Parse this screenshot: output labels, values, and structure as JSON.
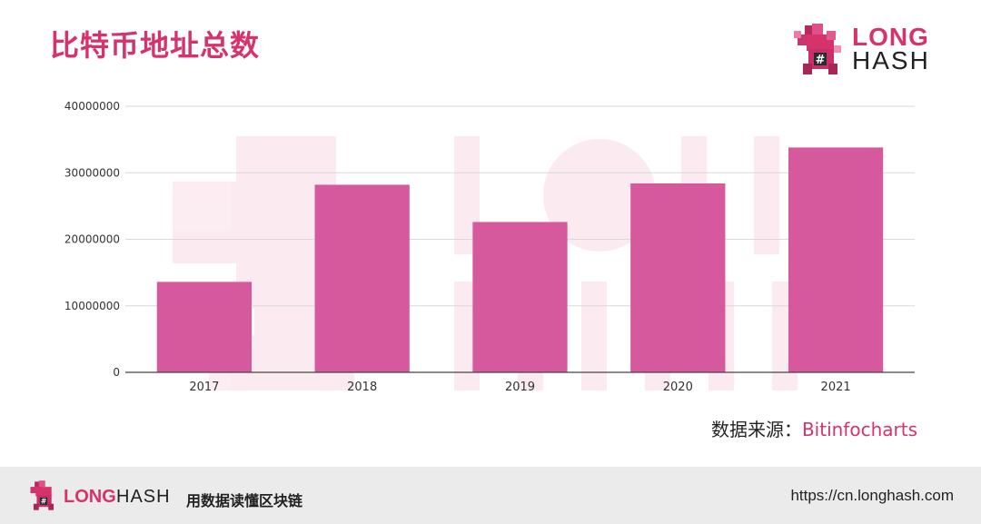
{
  "header": {
    "title": "比特币地址总数"
  },
  "logo": {
    "icon": "longhash-pixel-dino-icon",
    "brand_long": "LONG",
    "brand_hash": "HASH"
  },
  "source": {
    "label": "数据来源：",
    "value": "Bitinfocharts"
  },
  "footer": {
    "brand_long": "LONG",
    "brand_hash": "HASH",
    "slogan": "用数据读懂区块链",
    "url": "https://cn.longhash.com"
  },
  "colors": {
    "accent": "#d6336c",
    "bar": "#d6599e",
    "footer_bg": "#ebebeb"
  },
  "chart_data": {
    "type": "bar",
    "categories": [
      "2017",
      "2018",
      "2019",
      "2020",
      "2021"
    ],
    "values": [
      13600000,
      28200000,
      22600000,
      28400000,
      33800000
    ],
    "ylim": [
      0,
      40000000
    ],
    "yticks": [
      0,
      10000000,
      20000000,
      30000000,
      40000000
    ],
    "grid": true,
    "legend": "none"
  }
}
